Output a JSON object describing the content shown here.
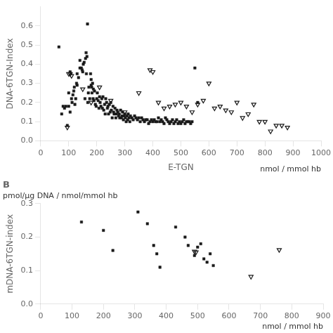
{
  "chart_data": [
    {
      "type": "scatter",
      "x_label": "E-TGN",
      "y_label": "DNA-6TGN-Index",
      "annotations": [
        "nmol / mmol hb"
      ],
      "xlim": [
        0,
        1000
      ],
      "ylim": [
        0.0,
        0.7
      ],
      "xticks": [
        0,
        100,
        200,
        300,
        400,
        500,
        600,
        700,
        800,
        900,
        1000
      ],
      "yticks": [
        {
          "value": 0.0,
          "label": "0.0"
        },
        0.1,
        0.2,
        0.3,
        0.4,
        0.5,
        0.6
      ],
      "grid": false,
      "series": [
        {
          "marker": "square",
          "color": "#1a1a1a",
          "x": [
            65,
            75,
            80,
            85,
            90,
            95,
            100,
            100,
            105,
            105,
            108,
            110,
            112,
            115,
            118,
            120,
            122,
            125,
            128,
            130,
            130,
            135,
            140,
            140,
            145,
            148,
            150,
            152,
            155,
            158,
            160,
            162,
            163,
            165,
            167,
            168,
            170,
            172,
            175,
            178,
            180,
            180,
            182,
            183,
            185,
            187,
            188,
            190,
            192,
            195,
            198,
            200,
            202,
            205,
            208,
            210,
            212,
            215,
            218,
            220,
            222,
            225,
            228,
            230,
            232,
            235,
            238,
            240,
            242,
            245,
            248,
            250,
            252,
            255,
            258,
            260,
            262,
            265,
            268,
            270,
            272,
            275,
            278,
            280,
            282,
            285,
            288,
            290,
            292,
            295,
            298,
            300,
            302,
            305,
            308,
            310,
            312,
            315,
            318,
            320,
            325,
            330,
            335,
            340,
            345,
            350,
            355,
            360,
            365,
            370,
            375,
            380,
            385,
            390,
            395,
            400,
            405,
            410,
            415,
            420,
            425,
            430,
            435,
            440,
            445,
            450,
            455,
            460,
            465,
            470,
            475,
            480,
            485,
            490,
            495,
            500,
            505,
            510,
            515,
            520,
            525,
            530,
            535,
            540,
            550,
            560
          ],
          "values": [
            0.49,
            0.14,
            0.18,
            0.17,
            0.18,
            0.08,
            0.18,
            0.25,
            0.36,
            0.15,
            0.35,
            0.22,
            0.2,
            0.24,
            0.26,
            0.28,
            0.19,
            0.22,
            0.3,
            0.35,
            0.29,
            0.33,
            0.38,
            0.42,
            0.38,
            0.37,
            0.36,
            0.4,
            0.41,
            0.22,
            0.43,
            0.46,
            0.35,
            0.44,
            0.61,
            0.2,
            0.25,
            0.28,
            0.22,
            0.35,
            0.29,
            0.32,
            0.28,
            0.25,
            0.3,
            0.22,
            0.27,
            0.21,
            0.26,
            0.19,
            0.18,
            0.22,
            0.25,
            0.21,
            0.17,
            0.23,
            0.2,
            0.18,
            0.22,
            0.17,
            0.23,
            0.16,
            0.19,
            0.14,
            0.22,
            0.2,
            0.17,
            0.18,
            0.14,
            0.19,
            0.15,
            0.2,
            0.16,
            0.12,
            0.18,
            0.15,
            0.14,
            0.17,
            0.12,
            0.14,
            0.16,
            0.15,
            0.13,
            0.14,
            0.12,
            0.16,
            0.12,
            0.13,
            0.15,
            0.11,
            0.13,
            0.14,
            0.12,
            0.1,
            0.13,
            0.11,
            0.14,
            0.12,
            0.1,
            0.13,
            0.12,
            0.11,
            0.13,
            0.12,
            0.11,
            0.12,
            0.1,
            0.12,
            0.11,
            0.1,
            0.11,
            0.11,
            0.09,
            0.1,
            0.11,
            0.1,
            0.11,
            0.1,
            0.1,
            0.12,
            0.1,
            0.11,
            0.1,
            0.09,
            0.12,
            0.11,
            0.1,
            0.09,
            0.1,
            0.11,
            0.09,
            0.1,
            0.11,
            0.09,
            0.1,
            0.09,
            0.1,
            0.11,
            0.09,
            0.1,
            0.1,
            0.1,
            0.09,
            0.1,
            0.38,
            0.2
          ]
        },
        {
          "marker": "open_triangle_down",
          "color": "#1a1a1a",
          "x": [
            95,
            100,
            105,
            110,
            150,
            180,
            210,
            250,
            300,
            350,
            390,
            400,
            420,
            440,
            460,
            480,
            500,
            520,
            540,
            560,
            580,
            600,
            620,
            640,
            660,
            680,
            700,
            720,
            740,
            760,
            780,
            800,
            820,
            840,
            860,
            880
          ],
          "values": [
            0.07,
            0.35,
            0.35,
            0.34,
            0.27,
            0.2,
            0.28,
            0.21,
            0.15,
            0.25,
            0.37,
            0.36,
            0.2,
            0.17,
            0.18,
            0.19,
            0.2,
            0.18,
            0.15,
            0.19,
            0.21,
            0.3,
            0.17,
            0.18,
            0.16,
            0.15,
            0.2,
            0.12,
            0.14,
            0.19,
            0.1,
            0.1,
            0.05,
            0.08,
            0.08,
            0.07
          ]
        }
      ]
    },
    {
      "type": "scatter",
      "title": "B",
      "subtitle": "pmol/μg DNA / nmol/mmol hb",
      "y_label": "mDNA-6TGN-index",
      "annotations": [
        "nmol / mmol hb"
      ],
      "xlim": [
        0,
        900
      ],
      "ylim": [
        0.0,
        0.3
      ],
      "xticks": [
        0,
        100,
        200,
        300,
        400,
        500,
        600,
        700,
        800,
        900
      ],
      "yticks": [
        {
          "value": 0.0,
          "label": "0.0"
        },
        0.1,
        0.2,
        0.3
      ],
      "grid": false,
      "series": [
        {
          "marker": "square",
          "color": "#1a1a1a",
          "x": [
            130,
            200,
            230,
            310,
            340,
            360,
            370,
            380,
            430,
            460,
            470,
            490,
            500,
            510,
            520,
            530,
            540,
            550
          ],
          "values": [
            0.245,
            0.22,
            0.16,
            0.275,
            0.24,
            0.175,
            0.15,
            0.11,
            0.23,
            0.2,
            0.175,
            0.145,
            0.17,
            0.18,
            0.135,
            0.125,
            0.15,
            0.115
          ]
        },
        {
          "marker": "open_triangle_down",
          "color": "#1a1a1a",
          "x": [
            490,
            495,
            670,
            760
          ],
          "values": [
            0.157,
            0.155,
            0.082,
            0.162
          ]
        }
      ]
    }
  ]
}
